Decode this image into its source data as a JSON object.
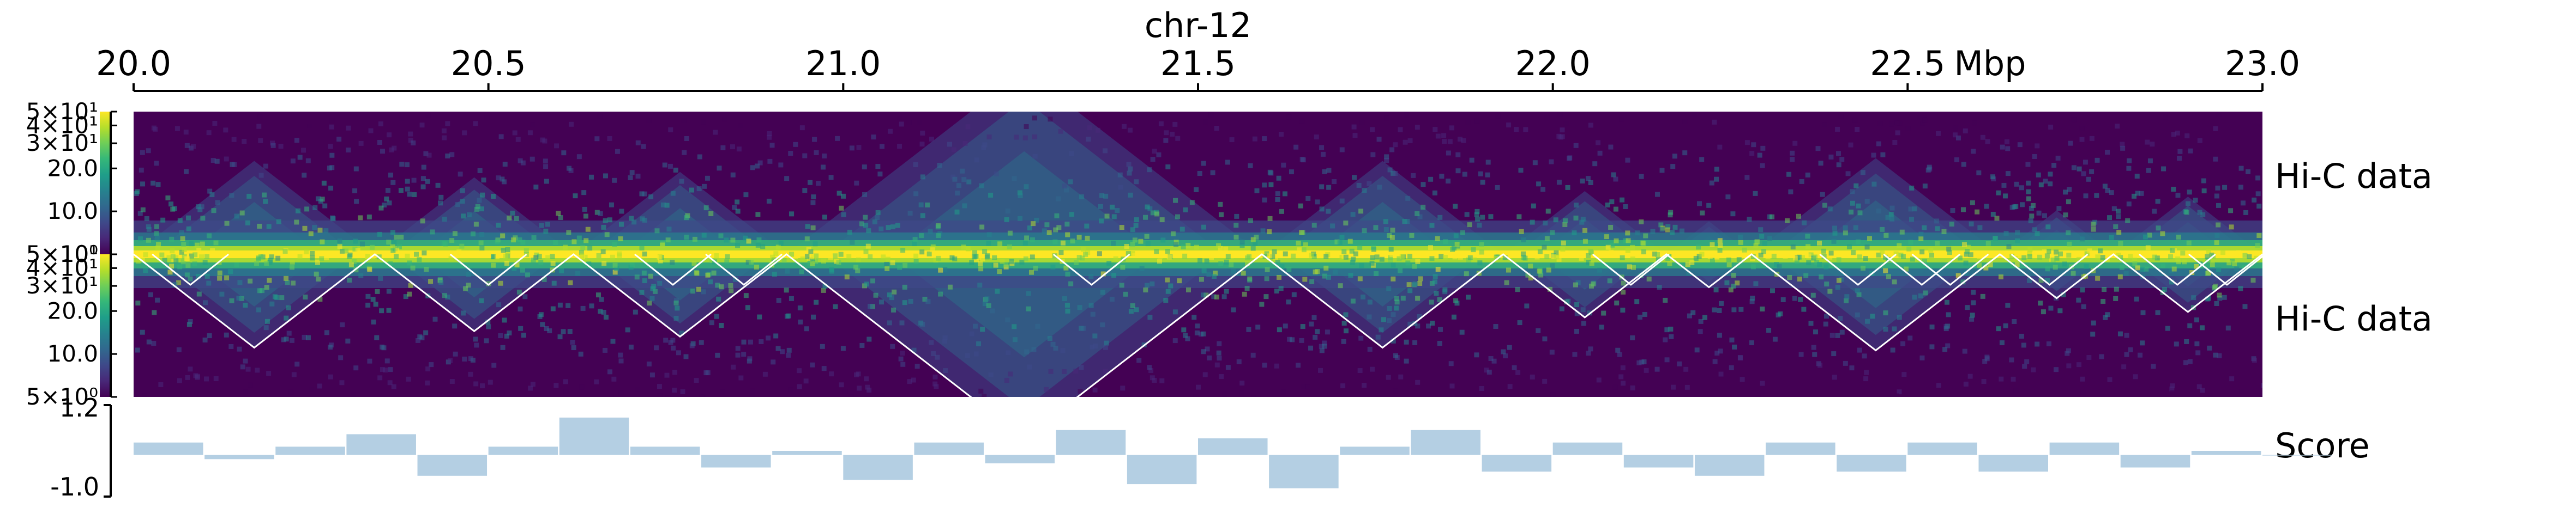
{
  "title": "chr-12",
  "ruler": {
    "ticks": [
      "20.0",
      "20.5",
      "21.0",
      "21.5",
      "22.0",
      "22.5",
      "23.0"
    ],
    "unit": "Mbp",
    "range": [
      20.0,
      23.0
    ]
  },
  "tracks": [
    {
      "label": "Hi-C data",
      "colorbar_ticks": [
        "5×10⁰",
        "10.0",
        "20.0",
        "3×10¹",
        "4×10¹",
        "5×10¹"
      ]
    },
    {
      "label": "Hi-C data",
      "colorbar_ticks": [
        "5×10⁰",
        "10.0",
        "20.0",
        "3×10¹",
        "4×10¹",
        "5×10¹"
      ]
    },
    {
      "label": "Score",
      "ticks": [
        "1.2",
        "-1.0"
      ]
    }
  ],
  "colors": {
    "viridis": [
      "#440154",
      "#482878",
      "#3e4989",
      "#31688e",
      "#26828e",
      "#1f9e89",
      "#35b779",
      "#6ece58",
      "#b5de2b",
      "#fde725"
    ],
    "score_fill": "#b4cfe3",
    "tad_line": "#ffffff"
  },
  "chart_data": {
    "type": "heatmap",
    "region": {
      "chrom": "chr-12",
      "start_mbp": 20.0,
      "end_mbp": 23.0
    },
    "tad_boundaries_mbp": [
      20.0,
      20.34,
      20.62,
      20.92,
      21.59,
      21.93,
      22.16,
      22.28,
      22.63,
      22.79,
      23.0
    ],
    "nested_peaks_mbp": [
      20.08,
      20.5,
      20.76,
      20.86,
      21.35,
      22.11,
      22.43,
      22.52,
      22.56,
      22.7,
      22.88,
      22.95
    ],
    "score_track": {
      "type": "bar",
      "ylim": [
        -1.0,
        1.2
      ],
      "x_mbp": [
        20.0,
        20.1,
        20.2,
        20.3,
        20.4,
        20.5,
        20.6,
        20.7,
        20.8,
        20.9,
        21.0,
        21.1,
        21.2,
        21.3,
        21.4,
        21.5,
        21.6,
        21.7,
        21.8,
        21.9,
        22.0,
        22.1,
        22.2,
        22.3,
        22.4,
        22.5,
        22.6,
        22.7,
        22.8,
        22.9,
        23.0
      ],
      "values": [
        0.3,
        -0.1,
        0.2,
        0.5,
        -0.5,
        0.2,
        0.9,
        0.2,
        -0.3,
        0.1,
        -0.6,
        0.3,
        -0.2,
        0.6,
        -0.7,
        0.4,
        -0.8,
        0.2,
        0.6,
        -0.4,
        0.3,
        -0.3,
        -0.5,
        0.3,
        -0.4,
        0.3,
        -0.4,
        0.3,
        -0.3,
        0.1,
        0.0
      ]
    }
  }
}
